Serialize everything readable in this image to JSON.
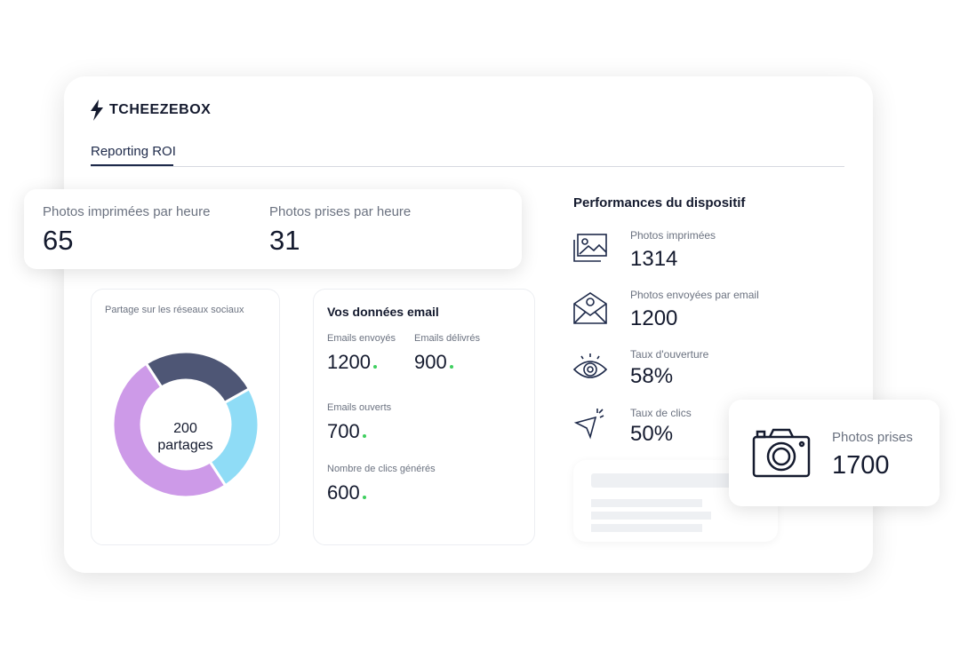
{
  "header": {
    "brand": "TCHEEZEBOX",
    "tab": "Reporting ROI"
  },
  "hourly": [
    {
      "label": "Photos imprimées par heure",
      "value": "65"
    },
    {
      "label": "Photos prises par heure",
      "value": "31"
    }
  ],
  "social": {
    "title": "Partage sur les réseaux sociaux",
    "center_value": "200",
    "center_unit": "partages",
    "segments": [
      {
        "color": "#4e5675",
        "value": 26
      },
      {
        "color": "#8fdcf6",
        "value": 24
      },
      {
        "color": "#cd9ae8",
        "value": 50
      }
    ]
  },
  "email": {
    "title": "Vos données email",
    "stats": [
      {
        "label": "Emails envoyés",
        "value": "1200"
      },
      {
        "label": "Emails délivrés",
        "value": "900"
      },
      {
        "label": "Emails ouverts",
        "value": "700"
      },
      {
        "label": "Nombre de clics générés",
        "value": "600"
      }
    ]
  },
  "performance": {
    "title": "Performances du dispositif",
    "items": [
      {
        "label": "Photos imprimées",
        "value": "1314"
      },
      {
        "label": "Photos envoyées par email",
        "value": "1200"
      },
      {
        "label": "Taux d'ouverture",
        "value": "58%"
      },
      {
        "label": "Taux de clics",
        "value": "50%"
      }
    ]
  },
  "camera": {
    "label": "Photos prises",
    "value": "1700"
  }
}
